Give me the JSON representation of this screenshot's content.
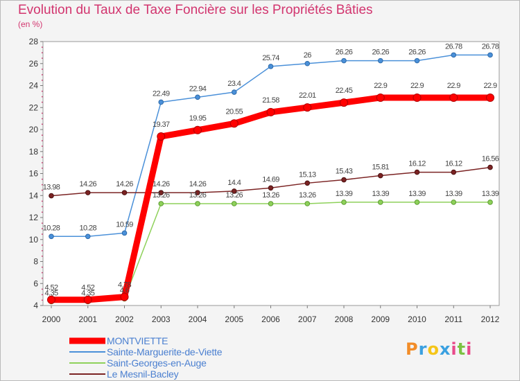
{
  "chart_data": {
    "type": "line",
    "title": "Evolution du Taux de Taxe Foncière sur les Propriétés Bâties",
    "ylabel": "(en %)",
    "xlabel": "",
    "categories": [
      "2000",
      "2001",
      "2002",
      "2003",
      "2004",
      "2005",
      "2006",
      "2007",
      "2008",
      "2009",
      "2010",
      "2011",
      "2012"
    ],
    "ylim": [
      4,
      28
    ],
    "yticks": [
      4,
      6,
      8,
      10,
      12,
      14,
      16,
      18,
      20,
      22,
      24,
      26,
      28
    ],
    "grid": false,
    "legend_position": "bottom-left",
    "series": [
      {
        "name": "MONTVIETTE",
        "color": "#ff0000",
        "values": [
          4.52,
          4.52,
          4.78,
          19.37,
          19.95,
          20.55,
          21.58,
          22.01,
          22.45,
          22.9,
          22.9,
          22.9,
          22.9
        ],
        "labels": [
          "4.52",
          "4.52",
          "4.78",
          "19.37",
          "19.95",
          "20.55",
          "21.58",
          "22.01",
          "22.45",
          "22.9",
          "22.9",
          "22.9",
          "22.9"
        ]
      },
      {
        "name": "Sainte-Marguerite-de-Viette",
        "color": "#4a90d9",
        "values": [
          10.28,
          10.28,
          10.59,
          22.49,
          22.94,
          23.4,
          25.74,
          26,
          26.26,
          26.26,
          26.26,
          26.78,
          26.78
        ],
        "labels": [
          "10.28",
          "10.28",
          "10.59",
          "22.49",
          "22.94",
          "23.4",
          "25.74",
          "26",
          "26.26",
          "26.26",
          "26.26",
          "26.78",
          "26.78"
        ]
      },
      {
        "name": "Saint-Georges-en-Auge",
        "color": "#8ed15a",
        "values": [
          4.35,
          4.35,
          4.6,
          13.26,
          13.26,
          13.26,
          13.26,
          13.26,
          13.39,
          13.39,
          13.39,
          13.39,
          13.39
        ],
        "labels": [
          "4.35",
          "4.35",
          "4.6",
          "13.26",
          "13.26",
          "13.26",
          "13.26",
          "13.26",
          "13.39",
          "13.39",
          "13.39",
          "13.39",
          "13.39"
        ]
      },
      {
        "name": "Le Mesnil-Bacley",
        "color": "#7b2323",
        "values": [
          13.98,
          14.26,
          14.26,
          14.26,
          14.26,
          14.4,
          14.69,
          15.13,
          15.43,
          15.81,
          16.12,
          16.12,
          16.56
        ],
        "labels": [
          "13.98",
          "14.26",
          "14.26",
          "14.26",
          "14.26",
          "14.4",
          "14.69",
          "15.13",
          "15.43",
          "15.81",
          "16.12",
          "16.12",
          "16.56"
        ]
      }
    ]
  },
  "brand": {
    "letters": [
      "P",
      "r",
      "o",
      "x",
      "i",
      "t",
      "i"
    ],
    "colors": [
      "#f28c28",
      "#3aa0e0",
      "#f5c518",
      "#3aa0e0",
      "#e84a8a",
      "#7cc242",
      "#e84a8a"
    ]
  }
}
